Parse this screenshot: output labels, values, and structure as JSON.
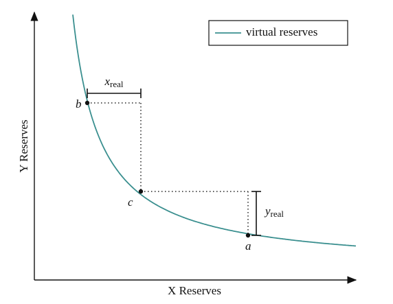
{
  "legend": "virtual reserves",
  "axes": {
    "x_label": "X Reserves",
    "y_label": "Y Reserves"
  },
  "points": [
    {
      "label": "b"
    },
    {
      "label": "c"
    },
    {
      "label": "a"
    }
  ],
  "x_real": {
    "symbol": "x",
    "subscript": "real"
  },
  "y_real": {
    "symbol": "y",
    "subscript": "real"
  }
}
